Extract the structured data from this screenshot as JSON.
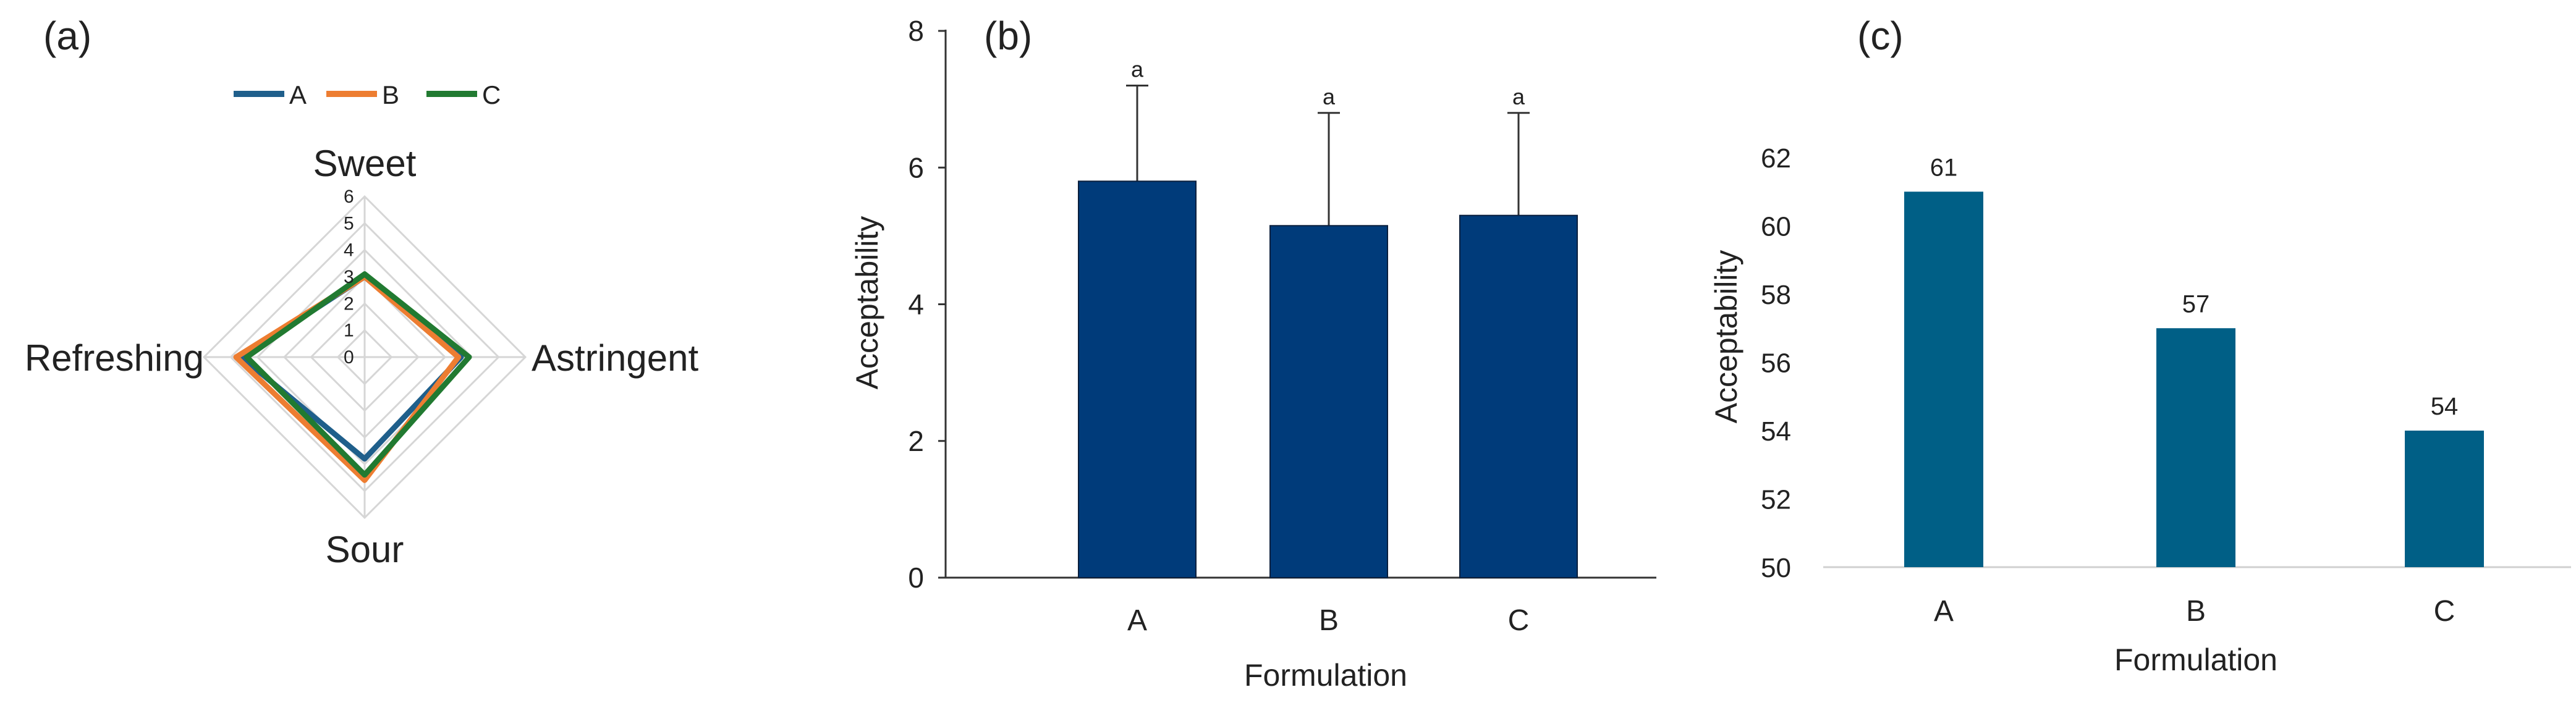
{
  "panels": [
    {
      "label": "(a)"
    },
    {
      "label": "(b)"
    },
    {
      "label": "(c)"
    }
  ],
  "chart_data": [
    {
      "type": "radar",
      "axes": [
        "Sweet",
        "Astringent",
        "Sour",
        "Refreshing"
      ],
      "rlim": [
        0,
        6
      ],
      "ticks": [
        "0",
        "1",
        "2",
        "3",
        "4",
        "5",
        "6"
      ],
      "legend_position": "top",
      "series": [
        {
          "name": "A",
          "color": "#1f5f8b",
          "values": [
            3.0,
            3.6,
            3.8,
            4.6
          ]
        },
        {
          "name": "B",
          "color": "#ed7d31",
          "values": [
            3.0,
            3.5,
            4.6,
            4.8
          ]
        },
        {
          "name": "C",
          "color": "#217a31",
          "values": [
            3.1,
            3.9,
            4.4,
            4.4
          ]
        }
      ]
    },
    {
      "type": "bar",
      "categories": [
        "A",
        "B",
        "C"
      ],
      "values": [
        5.8,
        5.15,
        5.3
      ],
      "errors": [
        1.4,
        1.65,
        1.5
      ],
      "annotations": [
        "a",
        "a",
        "a"
      ],
      "xlabel": "Formulation",
      "ylabel": "Acceptability",
      "ylim": [
        0,
        8
      ],
      "yticks": [
        "0",
        "2",
        "4",
        "6",
        "8"
      ],
      "bar_color": "#003b7a",
      "grid": false
    },
    {
      "type": "bar",
      "categories": [
        "A",
        "B",
        "C"
      ],
      "values": [
        61,
        57,
        54
      ],
      "data_labels": [
        "61",
        "57",
        "54"
      ],
      "xlabel": "Formulation",
      "ylabel": "Acceptability",
      "ylim": [
        50,
        62
      ],
      "yticks": [
        "50",
        "52",
        "54",
        "56",
        "58",
        "60",
        "62"
      ],
      "bar_color": "#005f86",
      "grid": false
    }
  ]
}
